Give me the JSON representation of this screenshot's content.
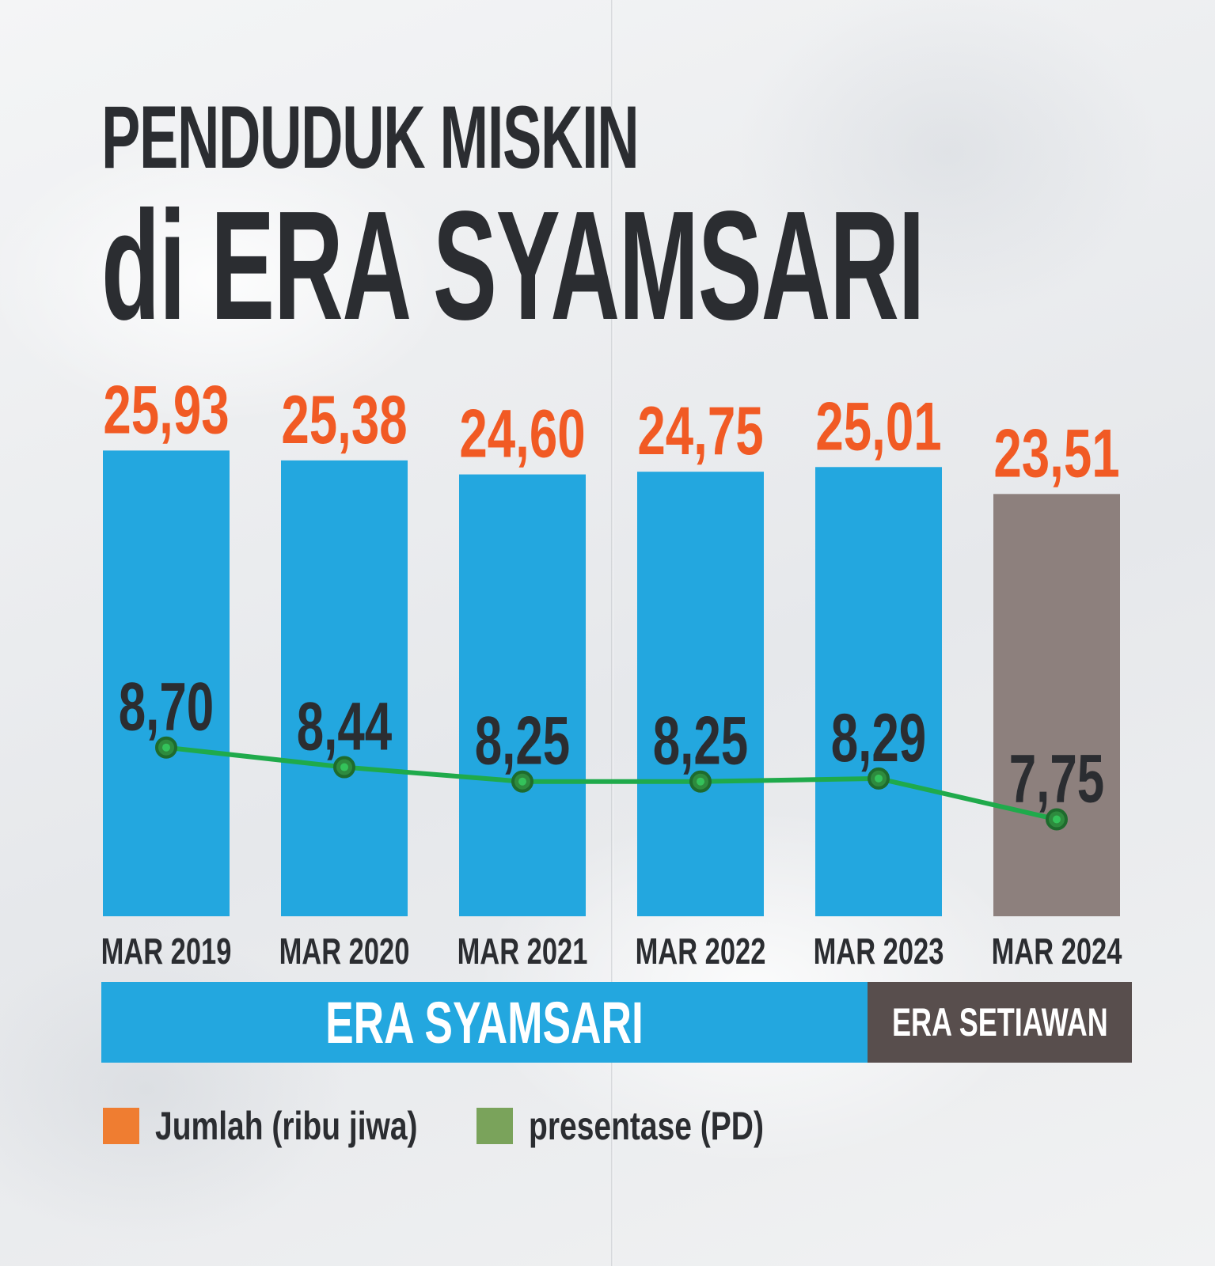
{
  "title_line1": "PENDUDUK MISKIN",
  "title_line2": "di ERA SYAMSARI",
  "chart_data": {
    "type": "bar",
    "categories": [
      "MAR 2019",
      "MAR 2020",
      "MAR 2021",
      "MAR 2022",
      "MAR 2023",
      "MAR 2024"
    ],
    "series": [
      {
        "name": "Jumlah (ribu jiwa)",
        "values": [
          25.93,
          25.38,
          24.6,
          24.75,
          25.01,
          23.51
        ],
        "labels": [
          "25,93",
          "25,38",
          "24,60",
          "24,75",
          "25,01",
          "23,51"
        ],
        "bar_colors": [
          "#23a7df",
          "#23a7df",
          "#23a7df",
          "#23a7df",
          "#23a7df",
          "#8d807d"
        ],
        "label_color": "#f15a24"
      },
      {
        "name": "presentase (PD)",
        "type": "line",
        "values": [
          8.7,
          8.44,
          8.25,
          8.25,
          8.29,
          7.75
        ],
        "labels": [
          "8,70",
          "8,44",
          "8,25",
          "8,25",
          "8,29",
          "7,75"
        ],
        "line_color": "#1faa4b",
        "marker_fill": "#2e8b3e",
        "label_color": "#2b2d31"
      }
    ],
    "grid": false,
    "legend": "bottom-left"
  },
  "eras": [
    {
      "label": "ERA SYAMSARI",
      "color": "#23a7df"
    },
    {
      "label": "ERA SETIAWAN",
      "color": "#584e4d"
    }
  ],
  "legend": [
    {
      "label": "Jumlah (ribu jiwa)",
      "color": "#ef7d31"
    },
    {
      "label": "presentase (PD)",
      "color": "#7aa35b"
    }
  ]
}
